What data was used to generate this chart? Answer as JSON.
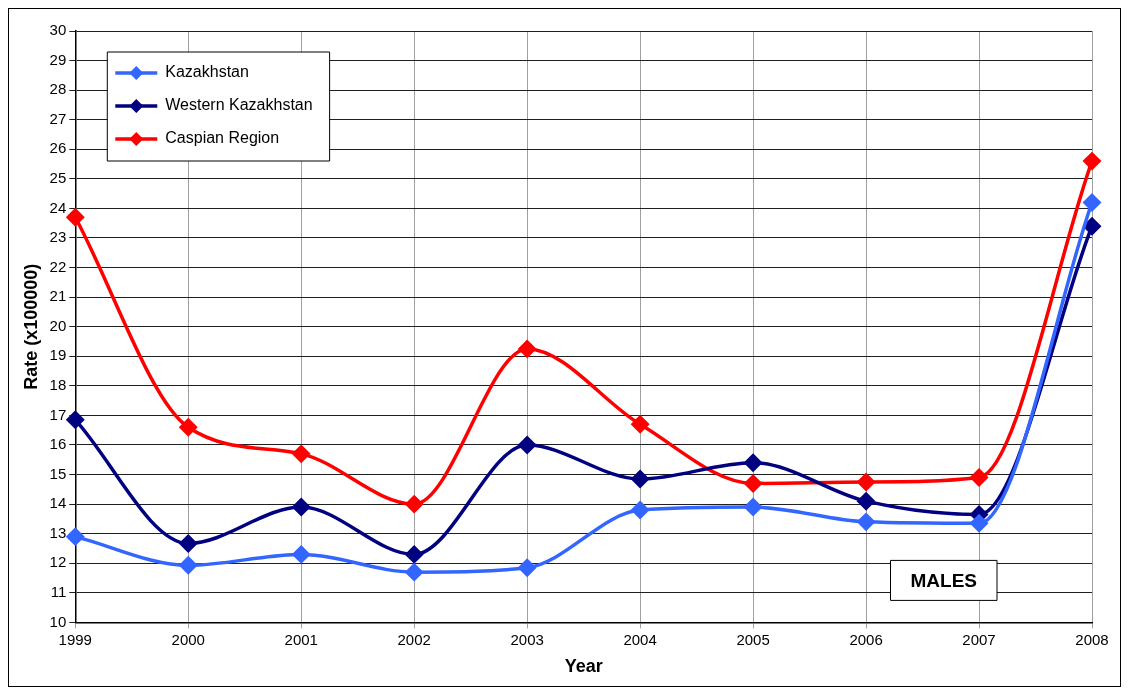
{
  "chart_data": {
    "type": "line",
    "xlabel": "Year",
    "ylabel": "Rate (x100000)",
    "categories": [
      "1999",
      "2000",
      "2001",
      "2002",
      "2003",
      "2004",
      "2005",
      "2006",
      "2007",
      "2008"
    ],
    "series": [
      {
        "name": "Kazakhstan",
        "color": "#3366ff",
        "values": [
          12.9,
          11.93,
          12.3,
          11.7,
          11.85,
          13.8,
          13.9,
          13.4,
          13.35,
          24.2
        ]
      },
      {
        "name": "Western Kazakhstan",
        "color": "#000080",
        "values": [
          16.85,
          12.67,
          13.9,
          12.3,
          16.0,
          14.85,
          15.4,
          14.1,
          13.65,
          23.4
        ]
      },
      {
        "name": "Caspian Region",
        "color": "#ff0000",
        "values": [
          23.7,
          16.6,
          15.7,
          14.0,
          19.25,
          16.7,
          14.7,
          14.75,
          14.9,
          25.6
        ]
      }
    ],
    "ylim": [
      10,
      30
    ],
    "yticks": [
      10,
      11,
      12,
      13,
      14,
      15,
      16,
      17,
      18,
      19,
      20,
      21,
      22,
      23,
      24,
      25,
      26,
      27,
      28,
      29,
      30
    ],
    "grid": true,
    "legend": "top left",
    "marker": "diamond",
    "line_style": "solid",
    "annotations": [
      "MALES"
    ]
  }
}
